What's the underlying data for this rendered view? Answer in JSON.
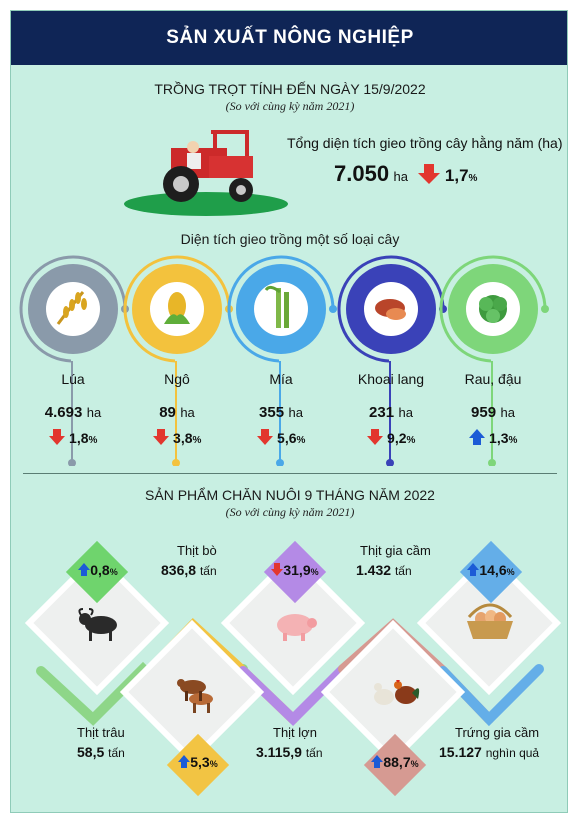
{
  "header": {
    "title": "SẢN XUẤT NÔNG NGHIỆP"
  },
  "crops_section": {
    "title": "TRỒNG TRỌT TÍNH ĐẾN NGÀY 15/9/2022",
    "subtitle": "(So với cùng kỳ năm 2021)",
    "total_label": "Tổng diện tích gieo trồng cây hằng năm (ha)",
    "total_value": "7.050",
    "total_unit": "ha",
    "total_change": "1,7",
    "area_title": "Diện tích gieo trồng một số loại cây",
    "items": [
      {
        "name": "Lúa",
        "value": "4.693",
        "unit": "ha",
        "change": "1,8",
        "direction": "down",
        "color": "#8a9aaa",
        "icon": "rice-icon"
      },
      {
        "name": "Ngô",
        "value": "89",
        "unit": "ha",
        "change": "3,8",
        "direction": "down",
        "color": "#f3c23d",
        "icon": "corn-icon"
      },
      {
        "name": "Mía",
        "value": "355",
        "unit": "ha",
        "change": "5,6",
        "direction": "down",
        "color": "#4aa8e8",
        "icon": "sugarcane-icon"
      },
      {
        "name": "Khoai lang",
        "value": "231",
        "unit": "ha",
        "change": "9,2",
        "direction": "down",
        "color": "#3a42b8",
        "icon": "sweet-potato-icon"
      },
      {
        "name": "Rau, đậu",
        "value": "959",
        "unit": "ha",
        "change": "1,3",
        "direction": "up",
        "color": "#7ed67a",
        "icon": "vegetable-icon"
      }
    ],
    "percent_sign": "%"
  },
  "livestock_section": {
    "title": "SẢN PHẨM CHĂN NUÔI 9 THÁNG NĂM 2022",
    "subtitle": "(So với cùng kỳ năm 2021)",
    "items": [
      {
        "name": "Thịt trâu",
        "value": "58,5",
        "unit": "tấn",
        "change": "0,8",
        "direction": "up",
        "tag_color": "#6fd46d",
        "icon": "buffalo-icon"
      },
      {
        "name": "Thịt bò",
        "value": "836,8",
        "unit": "tấn",
        "change": "5,3",
        "direction": "up",
        "tag_color": "#f2c443",
        "icon": "cattle-icon"
      },
      {
        "name": "Thịt lợn",
        "value": "3.115,9",
        "unit": "tấn",
        "change": "31,9",
        "direction": "down",
        "tag_color": "#b48ae6",
        "icon": "pig-icon"
      },
      {
        "name": "Thịt gia cầm",
        "value": "1.432",
        "unit": "tấn",
        "change": "88,7",
        "direction": "up",
        "tag_color": "#d69a92",
        "icon": "poultry-icon"
      },
      {
        "name": "Trứng gia cầm",
        "value": "15.127",
        "unit": "nghìn quả",
        "change": "14,6",
        "direction": "up",
        "tag_color": "#64aee8",
        "icon": "egg-basket-icon"
      }
    ]
  },
  "colors": {
    "header": "#0f2556",
    "background": "#c8efe2",
    "down_arrow": "#e2362e",
    "up_arrow": "#1c5bd6"
  }
}
